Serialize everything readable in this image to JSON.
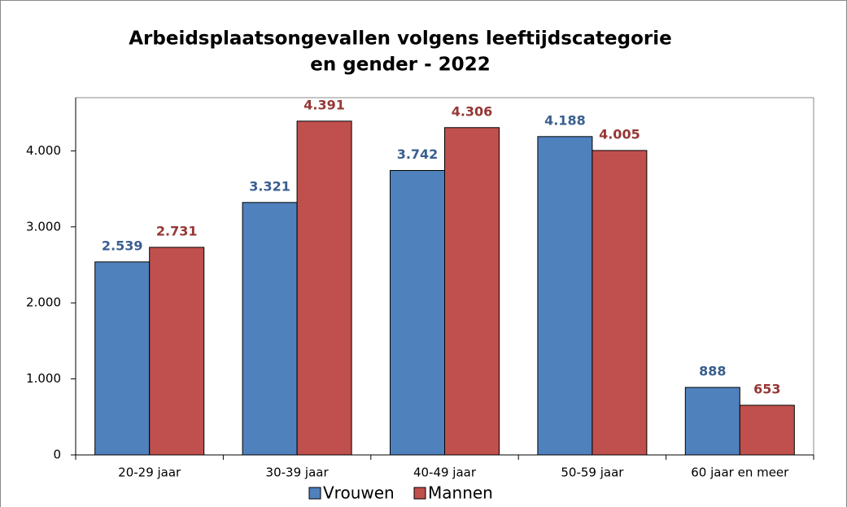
{
  "chart_data": {
    "type": "bar",
    "title": [
      "Arbeidsplaatsongevallen volgens leeftijdscategorie",
      "en gender - 2022"
    ],
    "categories": [
      "20-29 jaar",
      "30-39 jaar",
      "40-49 jaar",
      "50-59 jaar",
      "60 jaar en meer"
    ],
    "series": [
      {
        "name": "Vrouwen",
        "color": "#4f81bd",
        "label_color": "#3a5f8f",
        "values": [
          2539,
          3321,
          3742,
          4188,
          888
        ],
        "value_labels": [
          "2.539",
          "3.321",
          "3.742",
          "4.188",
          "888"
        ]
      },
      {
        "name": "Mannen",
        "color": "#c0504d",
        "label_color": "#953735",
        "values": [
          2731,
          4391,
          4306,
          4005,
          653
        ],
        "value_labels": [
          "2.731",
          "4.391",
          "4.306",
          "4.005",
          "653"
        ]
      }
    ],
    "ylim": [
      0,
      4700
    ],
    "yticks": [
      0,
      {
        "value": 1000,
        "label": "1.000"
      },
      {
        "value": 2000,
        "label": "2.000"
      },
      {
        "value": 3000,
        "label": "3.000"
      },
      {
        "value": 4000,
        "label": "4.000"
      }
    ],
    "grid": false,
    "legend": "bottom"
  }
}
